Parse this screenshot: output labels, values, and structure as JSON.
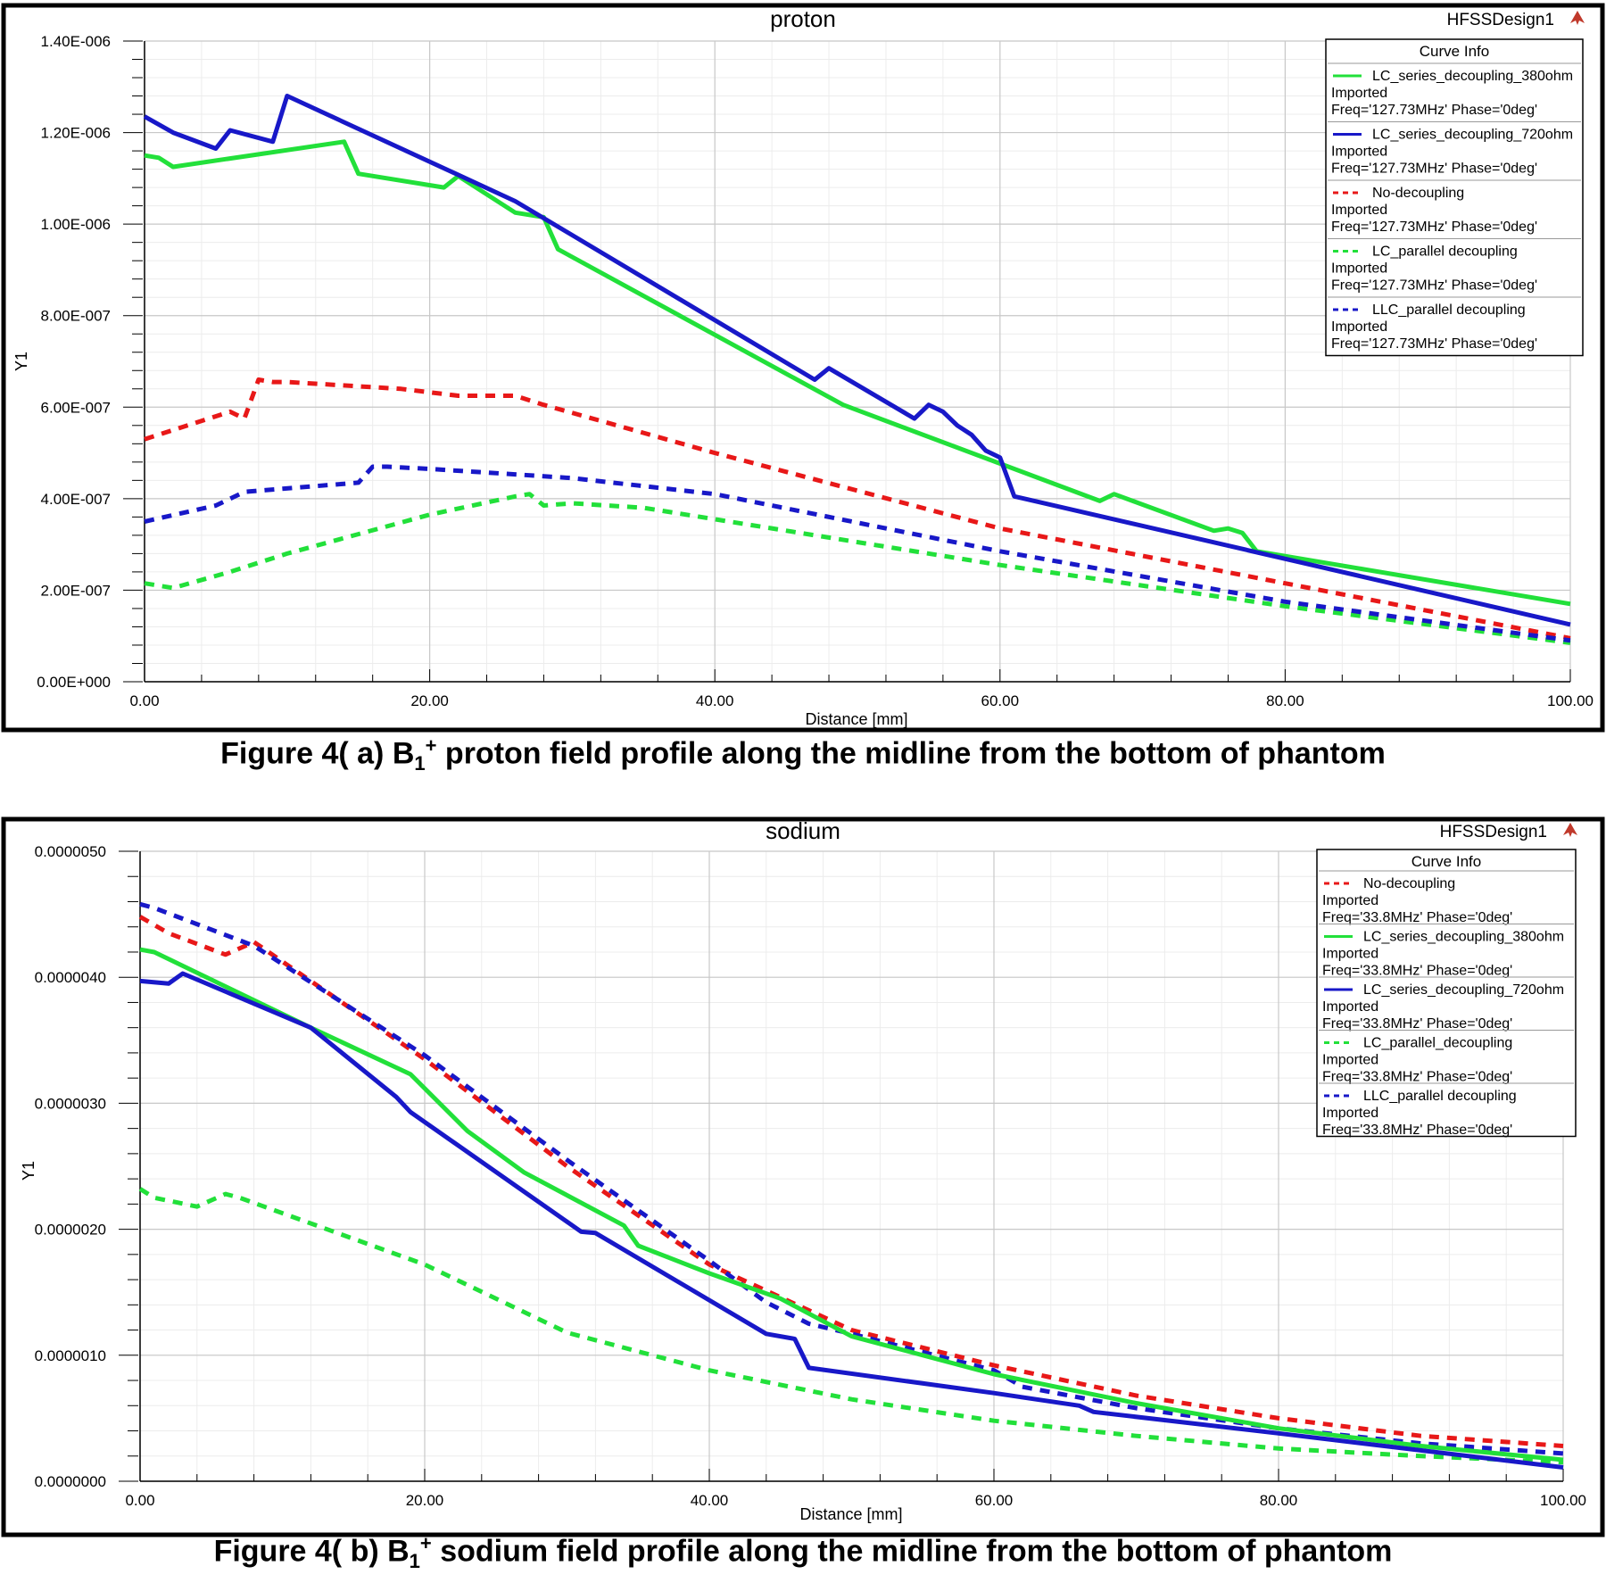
{
  "captions": [
    {
      "prefix": "Figure 4( a) B",
      "sub": "1",
      "sup": "+",
      "rest": " proton field profile along the midline from the bottom of phantom"
    },
    {
      "prefix": "Figure 4( b) B",
      "sub": "1",
      "sup": "+",
      "rest": " sodium field profile along the midline from the bottom of phantom"
    }
  ],
  "colors": {
    "green": "#22e03a",
    "blue": "#1818c8",
    "red": "#e81818"
  },
  "chart_data": [
    {
      "type": "line",
      "title": "proton",
      "design_label": "HFSSDesign1",
      "xlabel": "Distance [mm]",
      "ylabel": "Y1",
      "xlim": [
        0,
        100
      ],
      "ylim": [
        0,
        1.4e-06
      ],
      "xticks": [
        0,
        20,
        40,
        60,
        80,
        100
      ],
      "xtick_labels": [
        "0.00",
        "20.00",
        "40.00",
        "60.00",
        "80.00",
        "100.00"
      ],
      "yticks": [
        0,
        2e-07,
        4e-07,
        6e-07,
        8e-07,
        1e-06,
        1.2e-06,
        1.4e-06
      ],
      "ytick_labels": [
        "0.00E+000",
        "2.00E-007",
        "4.00E-007",
        "6.00E-007",
        "8.00E-007",
        "1.00E-006",
        "1.20E-006",
        "1.40E-006"
      ],
      "legend_title": "Curve Info",
      "legend_position": "top-right",
      "series": [
        {
          "name": "LC_series_decoupling_380ohm",
          "source": "Imported",
          "freq": "Freq='127.73MHz' Phase='0deg'",
          "color": "#22e03a",
          "dash": false,
          "x": [
            0,
            1,
            2,
            14,
            15,
            21,
            22,
            26,
            28,
            29,
            49,
            67,
            68,
            75,
            76,
            77,
            78,
            100
          ],
          "y": [
            1.15e-06,
            1.145e-06,
            1.125e-06,
            1.18e-06,
            1.11e-06,
            1.08e-06,
            1.105e-06,
            1.025e-06,
            1.015e-06,
            9.45e-07,
            6.05e-07,
            3.95e-07,
            4.1e-07,
            3.3e-07,
            3.35e-07,
            3.25e-07,
            2.85e-07,
            1.7e-07
          ]
        },
        {
          "name": "LC_series_decoupling_720ohm",
          "source": "Imported",
          "freq": "Freq='127.73MHz' Phase='0deg'",
          "color": "#1818c8",
          "dash": false,
          "x": [
            0,
            2,
            5,
            6,
            9,
            10,
            26,
            47,
            48,
            54,
            55,
            56,
            57,
            58,
            59,
            60,
            61,
            100
          ],
          "y": [
            1.235e-06,
            1.2e-06,
            1.165e-06,
            1.205e-06,
            1.18e-06,
            1.28e-06,
            1.05e-06,
            6.6e-07,
            6.85e-07,
            5.75e-07,
            6.05e-07,
            5.9e-07,
            5.6e-07,
            5.4e-07,
            5.05e-07,
            4.9e-07,
            4.05e-07,
            1.25e-07
          ]
        },
        {
          "name": "No-decoupling",
          "source": "Imported",
          "freq": "Freq='127.73MHz' Phase='0deg'",
          "color": "#e81818",
          "dash": true,
          "x": [
            0,
            2,
            6,
            7,
            8,
            9,
            10,
            18,
            22,
            26,
            28,
            40,
            60,
            80,
            100
          ],
          "y": [
            5.3e-07,
            5.5e-07,
            5.9e-07,
            5.75e-07,
            6.6e-07,
            6.55e-07,
            6.55e-07,
            6.4e-07,
            6.25e-07,
            6.25e-07,
            6.05e-07,
            5e-07,
            3.35e-07,
            2.15e-07,
            9.5e-08
          ]
        },
        {
          "name": "LC_parallel decoupling",
          "source": "Imported",
          "freq": "Freq='127.73MHz' Phase='0deg'",
          "color": "#22e03a",
          "dash": true,
          "x": [
            0,
            2,
            6,
            10,
            20,
            26,
            27,
            28,
            30,
            35,
            40,
            60,
            80,
            100
          ],
          "y": [
            2.15e-07,
            2.05e-07,
            2.4e-07,
            2.8e-07,
            3.65e-07,
            4.05e-07,
            4.1e-07,
            3.85e-07,
            3.9e-07,
            3.8e-07,
            3.55e-07,
            2.55e-07,
            1.65e-07,
            8.5e-08
          ]
        },
        {
          "name": "LLC_parallel decoupling",
          "source": "Imported",
          "freq": "Freq='127.73MHz' Phase='0deg'",
          "color": "#1818c8",
          "dash": true,
          "x": [
            0,
            5,
            7,
            15,
            16,
            17,
            20,
            25,
            30,
            40,
            60,
            80,
            100
          ],
          "y": [
            3.5e-07,
            3.85e-07,
            4.15e-07,
            4.35e-07,
            4.7e-07,
            4.7e-07,
            4.65e-07,
            4.55e-07,
            4.45e-07,
            4.1e-07,
            2.85e-07,
            1.75e-07,
            9e-08
          ]
        }
      ]
    },
    {
      "type": "line",
      "title": "sodium",
      "design_label": "HFSSDesign1",
      "xlabel": "Distance [mm]",
      "ylabel": "Y1",
      "xlim": [
        0,
        100
      ],
      "ylim": [
        0,
        5e-06
      ],
      "xticks": [
        0,
        20,
        40,
        60,
        80,
        100
      ],
      "xtick_labels": [
        "0.00",
        "20.00",
        "40.00",
        "60.00",
        "80.00",
        "100.00"
      ],
      "yticks": [
        0,
        1e-06,
        2e-06,
        3e-06,
        4e-06,
        5e-06
      ],
      "ytick_labels": [
        "0.0000000",
        "0.0000010",
        "0.0000020",
        "0.0000030",
        "0.0000040",
        "0.0000050"
      ],
      "legend_title": "Curve Info",
      "legend_position": "top-right",
      "series": [
        {
          "name": "No-decoupling",
          "source": "Imported",
          "freq": "Freq='33.8MHz' Phase='0deg'",
          "color": "#e81818",
          "dash": true,
          "x": [
            0,
            2,
            6,
            8,
            20,
            30,
            40,
            50,
            60,
            70,
            80,
            90,
            100
          ],
          "y": [
            4.48e-06,
            4.35e-06,
            4.18e-06,
            4.28e-06,
            3.35e-06,
            2.5e-06,
            1.72e-06,
            1.2e-06,
            9.2e-07,
            6.8e-07,
            5e-07,
            3.6e-07,
            2.8e-07
          ]
        },
        {
          "name": "LC_series_decoupling_380ohm",
          "source": "Imported",
          "freq": "Freq='33.8MHz' Phase='0deg'",
          "color": "#22e03a",
          "dash": false,
          "x": [
            0,
            1,
            12,
            19,
            23,
            27,
            34,
            35,
            40,
            45,
            50,
            60,
            70,
            80,
            90,
            100
          ],
          "y": [
            4.22e-06,
            4.2e-06,
            3.6e-06,
            3.23e-06,
            2.78e-06,
            2.45e-06,
            2.03e-06,
            1.87e-06,
            1.65e-06,
            1.45e-06,
            1.15e-06,
            8.5e-07,
            6.2e-07,
            4.2e-07,
            2.8e-07,
            1.7e-07
          ]
        },
        {
          "name": "LC_series_decoupling_720ohm",
          "source": "Imported",
          "freq": "Freq='33.8MHz' Phase='0deg'",
          "color": "#1818c8",
          "dash": false,
          "x": [
            0,
            2,
            3,
            12,
            18,
            19,
            31,
            32,
            44,
            46,
            47,
            60,
            66,
            67,
            80,
            100
          ],
          "y": [
            3.97e-06,
            3.95e-06,
            4.03e-06,
            3.6e-06,
            3.05e-06,
            2.93e-06,
            1.98e-06,
            1.97e-06,
            1.17e-06,
            1.13e-06,
            9e-07,
            7e-07,
            6e-07,
            5.5e-07,
            3.8e-07,
            1.1e-07
          ]
        },
        {
          "name": "LC_parallel_decoupling",
          "source": "Imported",
          "freq": "Freq='33.8MHz' Phase='0deg'",
          "color": "#22e03a",
          "dash": true,
          "x": [
            0,
            1,
            4,
            6,
            7,
            20,
            30,
            40,
            50,
            60,
            70,
            80,
            90,
            100
          ],
          "y": [
            2.32e-06,
            2.25e-06,
            2.18e-06,
            2.28e-06,
            2.25e-06,
            1.72e-06,
            1.18e-06,
            8.8e-07,
            6.5e-07,
            4.8e-07,
            3.6e-07,
            2.6e-07,
            2e-07,
            1.5e-07
          ]
        },
        {
          "name": "LLC_parallel decoupling",
          "source": "Imported",
          "freq": "Freq='33.8MHz' Phase='0deg'",
          "color": "#1818c8",
          "dash": true,
          "x": [
            0,
            1,
            8,
            20,
            30,
            40,
            44,
            47,
            50,
            60,
            62,
            70,
            80,
            90,
            100
          ],
          "y": [
            4.58e-06,
            4.55e-06,
            4.25e-06,
            3.38e-06,
            2.55e-06,
            1.75e-06,
            1.42e-06,
            1.25e-06,
            1.17e-06,
            8.8e-07,
            7.5e-07,
            5.8e-07,
            4.2e-07,
            3e-07,
            2.2e-07
          ]
        }
      ]
    }
  ]
}
